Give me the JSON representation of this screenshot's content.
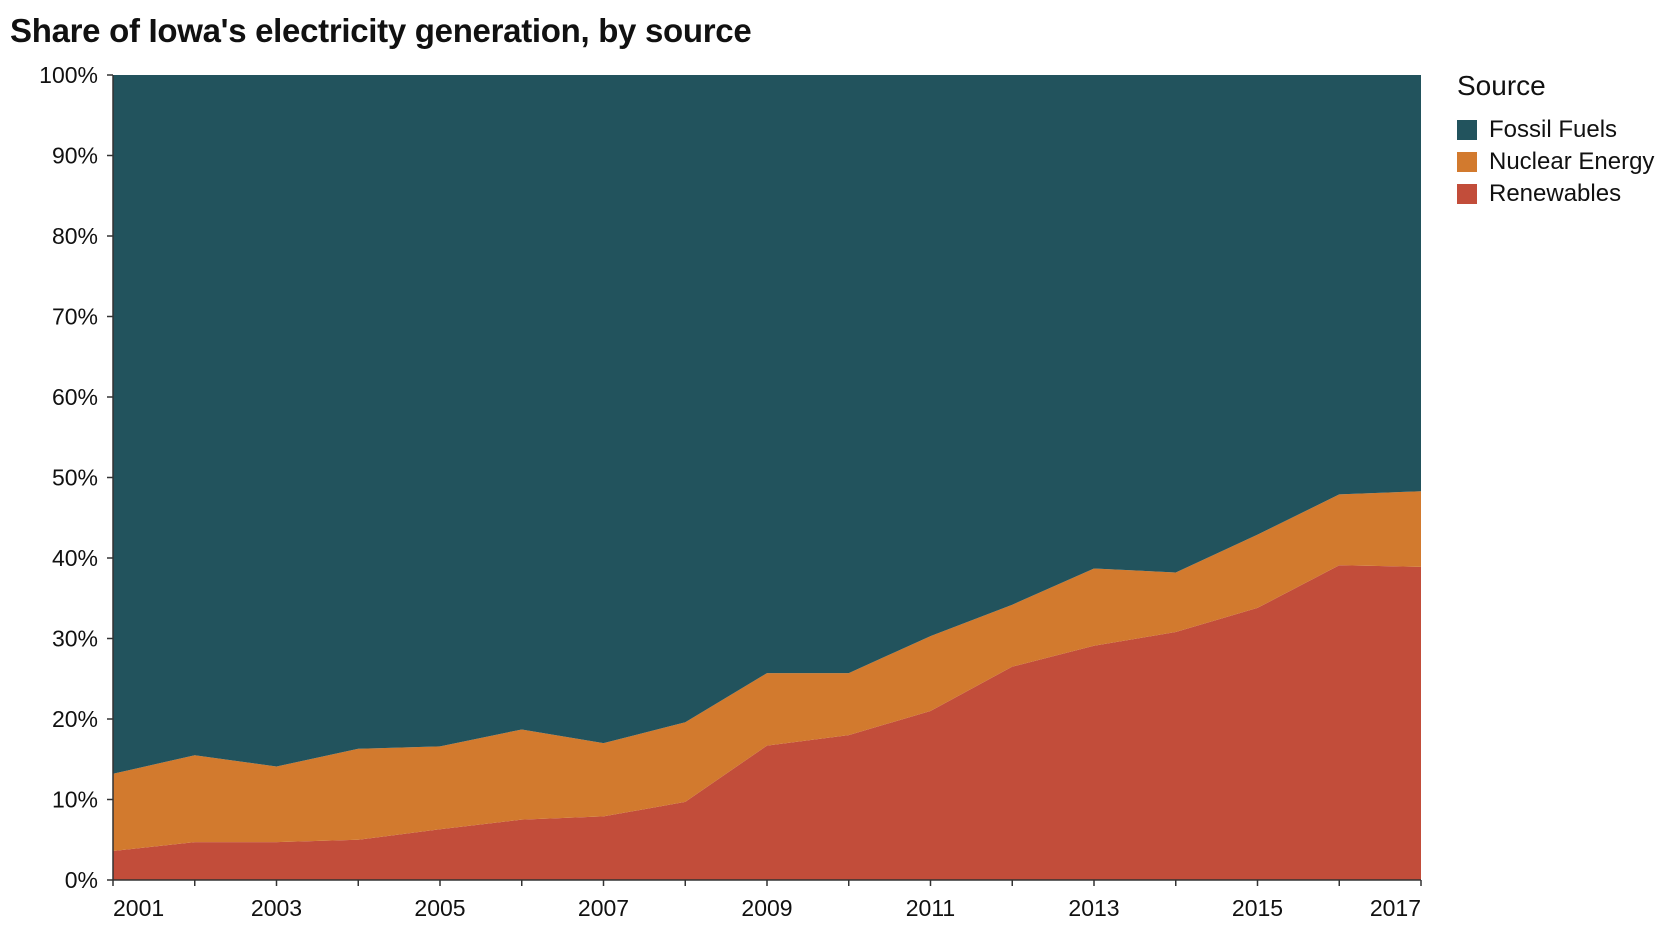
{
  "chart_data": {
    "type": "area",
    "stacked": true,
    "normalized": true,
    "title": "Share of Iowa's electricity generation, by source",
    "x": [
      2001,
      2002,
      2003,
      2004,
      2005,
      2006,
      2007,
      2008,
      2009,
      2010,
      2011,
      2012,
      2013,
      2014,
      2015,
      2016,
      2017
    ],
    "x_tick_labels": [
      "2001",
      "2003",
      "2005",
      "2007",
      "2009",
      "2011",
      "2013",
      "2015",
      "2017"
    ],
    "y_tick_labels": [
      "0%",
      "10%",
      "20%",
      "30%",
      "40%",
      "50%",
      "60%",
      "70%",
      "80%",
      "90%",
      "100%"
    ],
    "ylim": [
      0,
      100
    ],
    "legend_title": "Source",
    "legend_position": "top-right",
    "grid": false,
    "series": [
      {
        "name": "Fossil Fuels",
        "color": "#22535d",
        "values": [
          86.8,
          84.5,
          85.9,
          83.7,
          83.4,
          81.3,
          83.0,
          80.4,
          74.3,
          74.3,
          69.7,
          65.8,
          61.3,
          61.8,
          57.1,
          52.1,
          51.7
        ]
      },
      {
        "name": "Nuclear Energy",
        "color": "#d27a2e",
        "values": [
          9.6,
          10.8,
          9.4,
          11.3,
          10.3,
          11.2,
          9.1,
          9.9,
          9.0,
          7.7,
          9.3,
          7.7,
          9.6,
          7.4,
          9.1,
          8.8,
          9.4
        ]
      },
      {
        "name": "Renewables",
        "color": "#c24d3a",
        "values": [
          3.6,
          4.7,
          4.7,
          5.0,
          6.3,
          7.5,
          7.9,
          9.7,
          16.7,
          18.0,
          21.0,
          26.5,
          29.1,
          30.8,
          33.8,
          39.1,
          38.9
        ]
      }
    ]
  }
}
